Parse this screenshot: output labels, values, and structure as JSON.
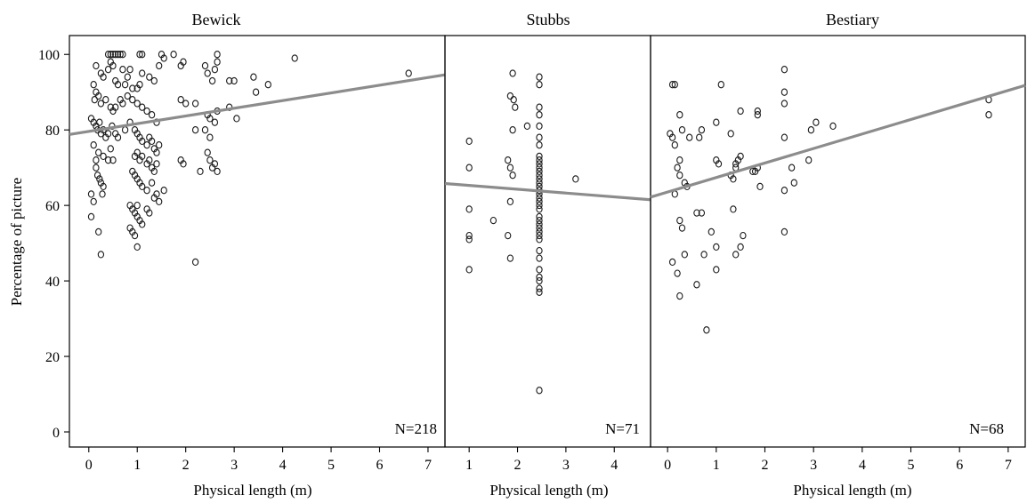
{
  "chart_data": [
    {
      "type": "scatter",
      "title": "Bewick",
      "xlabel": "Physical length (m)",
      "ylabel": "Percentage of picture",
      "xlim": [
        -0.4,
        7.35
      ],
      "ylim": [
        -4,
        105
      ],
      "xticks": [
        0,
        1,
        2,
        3,
        4,
        5,
        6,
        7
      ],
      "yticks": [
        0,
        20,
        40,
        60,
        80,
        100
      ],
      "annotation": "N=218",
      "fit": {
        "x": [
          -0.4,
          7.35
        ],
        "y": [
          78.8,
          94.6
        ]
      },
      "points": [
        [
          0.4,
          100
        ],
        [
          0.45,
          100
        ],
        [
          0.5,
          100
        ],
        [
          0.55,
          100
        ],
        [
          0.6,
          100
        ],
        [
          0.65,
          100
        ],
        [
          0.7,
          100
        ],
        [
          1.05,
          100
        ],
        [
          1.1,
          100
        ],
        [
          1.5,
          100
        ],
        [
          1.75,
          100
        ],
        [
          2.65,
          100
        ],
        [
          0.45,
          98
        ],
        [
          0.5,
          97
        ],
        [
          0.4,
          96
        ],
        [
          0.7,
          96
        ],
        [
          0.15,
          97
        ],
        [
          0.25,
          95
        ],
        [
          0.3,
          94
        ],
        [
          0.55,
          93
        ],
        [
          0.6,
          92
        ],
        [
          0.85,
          96
        ],
        [
          0.8,
          94
        ],
        [
          0.75,
          92
        ],
        [
          0.9,
          91
        ],
        [
          1.0,
          91
        ],
        [
          1.05,
          92
        ],
        [
          1.1,
          95
        ],
        [
          1.25,
          94
        ],
        [
          1.35,
          93
        ],
        [
          1.45,
          97
        ],
        [
          1.55,
          99
        ],
        [
          1.9,
          97
        ],
        [
          1.95,
          98
        ],
        [
          2.2,
          87
        ],
        [
          2.4,
          97
        ],
        [
          2.45,
          95
        ],
        [
          2.55,
          93
        ],
        [
          2.65,
          98
        ],
        [
          2.6,
          96
        ],
        [
          2.9,
          93
        ],
        [
          3.0,
          93
        ],
        [
          3.4,
          94
        ],
        [
          3.45,
          90
        ],
        [
          3.7,
          92
        ],
        [
          4.25,
          99
        ],
        [
          6.6,
          95
        ],
        [
          0.1,
          92
        ],
        [
          0.15,
          90
        ],
        [
          0.12,
          88
        ],
        [
          0.2,
          89
        ],
        [
          0.25,
          87
        ],
        [
          0.35,
          88
        ],
        [
          0.45,
          86
        ],
        [
          0.5,
          85
        ],
        [
          0.55,
          86
        ],
        [
          0.65,
          88
        ],
        [
          0.7,
          87
        ],
        [
          0.8,
          89
        ],
        [
          0.9,
          88
        ],
        [
          1.0,
          87
        ],
        [
          1.1,
          86
        ],
        [
          1.2,
          85
        ],
        [
          1.3,
          84
        ],
        [
          1.4,
          82
        ],
        [
          1.9,
          88
        ],
        [
          2.0,
          87
        ],
        [
          2.45,
          84
        ],
        [
          2.5,
          83
        ],
        [
          2.6,
          82
        ],
        [
          2.65,
          85
        ],
        [
          2.9,
          86
        ],
        [
          3.05,
          83
        ],
        [
          0.05,
          83
        ],
        [
          0.1,
          82
        ],
        [
          0.15,
          81
        ],
        [
          0.18,
          80
        ],
        [
          0.22,
          82
        ],
        [
          0.25,
          79
        ],
        [
          0.3,
          80
        ],
        [
          0.35,
          78
        ],
        [
          0.4,
          79
        ],
        [
          0.48,
          81
        ],
        [
          0.55,
          79
        ],
        [
          0.6,
          78
        ],
        [
          0.75,
          80
        ],
        [
          0.85,
          82
        ],
        [
          0.95,
          80
        ],
        [
          1.0,
          79
        ],
        [
          1.05,
          78
        ],
        [
          1.1,
          77
        ],
        [
          1.2,
          76
        ],
        [
          1.25,
          78
        ],
        [
          1.3,
          77
        ],
        [
          1.35,
          75
        ],
        [
          1.4,
          74
        ],
        [
          1.45,
          76
        ],
        [
          2.4,
          80
        ],
        [
          2.5,
          78
        ],
        [
          2.2,
          80
        ],
        [
          0.1,
          76
        ],
        [
          0.2,
          74
        ],
        [
          0.3,
          73
        ],
        [
          0.4,
          72
        ],
        [
          0.45,
          75
        ],
        [
          0.5,
          72
        ],
        [
          0.15,
          72
        ],
        [
          0.95,
          73
        ],
        [
          1.0,
          74
        ],
        [
          1.05,
          72
        ],
        [
          1.1,
          73
        ],
        [
          1.2,
          71
        ],
        [
          1.25,
          72
        ],
        [
          1.3,
          70
        ],
        [
          1.35,
          69
        ],
        [
          1.4,
          71
        ],
        [
          1.9,
          72
        ],
        [
          1.95,
          71
        ],
        [
          2.45,
          74
        ],
        [
          2.5,
          72
        ],
        [
          2.55,
          70
        ],
        [
          2.6,
          71
        ],
        [
          2.65,
          69
        ],
        [
          2.3,
          69
        ],
        [
          0.15,
          70
        ],
        [
          0.18,
          68
        ],
        [
          0.22,
          67
        ],
        [
          0.25,
          66
        ],
        [
          0.3,
          65
        ],
        [
          0.28,
          63
        ],
        [
          0.9,
          69
        ],
        [
          0.95,
          68
        ],
        [
          1.0,
          67
        ],
        [
          1.05,
          66
        ],
        [
          1.1,
          65
        ],
        [
          1.2,
          64
        ],
        [
          1.3,
          66
        ],
        [
          1.35,
          62
        ],
        [
          1.4,
          63
        ],
        [
          1.45,
          61
        ],
        [
          1.55,
          64
        ],
        [
          1.0,
          60
        ],
        [
          0.05,
          57
        ],
        [
          0.2,
          53
        ],
        [
          0.25,
          47
        ],
        [
          0.85,
          60
        ],
        [
          0.9,
          59
        ],
        [
          0.95,
          58
        ],
        [
          1.0,
          57
        ],
        [
          1.05,
          56
        ],
        [
          1.1,
          55
        ],
        [
          1.2,
          59
        ],
        [
          1.25,
          58
        ],
        [
          0.85,
          54
        ],
        [
          0.9,
          53
        ],
        [
          0.95,
          52
        ],
        [
          1.0,
          49
        ],
        [
          2.2,
          45
        ],
        [
          0.05,
          63
        ],
        [
          0.1,
          61
        ]
      ]
    },
    {
      "type": "scatter",
      "title": "Stubbs",
      "xlabel": "Physical length (m)",
      "xlim": [
        0.5,
        4.75
      ],
      "ylim": [
        -4,
        105
      ],
      "xticks": [
        1,
        2,
        3,
        4
      ],
      "annotation": "N=71",
      "fit": {
        "x": [
          0.5,
          4.75
        ],
        "y": [
          65.8,
          61.5
        ]
      },
      "points": [
        [
          1,
          77
        ],
        [
          1,
          70
        ],
        [
          1,
          59
        ],
        [
          1,
          52
        ],
        [
          1,
          51
        ],
        [
          1,
          43
        ],
        [
          1.5,
          56
        ],
        [
          1.85,
          89
        ],
        [
          1.9,
          95
        ],
        [
          1.92,
          88
        ],
        [
          1.95,
          86
        ],
        [
          1.9,
          80
        ],
        [
          1.8,
          72
        ],
        [
          1.85,
          70
        ],
        [
          1.9,
          68
        ],
        [
          1.85,
          61
        ],
        [
          1.8,
          52
        ],
        [
          1.85,
          46
        ],
        [
          2.2,
          81
        ],
        [
          2.45,
          94
        ],
        [
          2.45,
          92
        ],
        [
          2.45,
          86
        ],
        [
          2.45,
          84
        ],
        [
          2.45,
          81
        ],
        [
          2.45,
          78
        ],
        [
          2.45,
          76
        ],
        [
          2.45,
          73
        ],
        [
          2.45,
          72
        ],
        [
          2.45,
          71
        ],
        [
          2.45,
          70
        ],
        [
          2.45,
          69
        ],
        [
          2.45,
          68
        ],
        [
          2.45,
          67
        ],
        [
          2.45,
          66
        ],
        [
          2.45,
          65
        ],
        [
          2.45,
          64
        ],
        [
          2.45,
          63
        ],
        [
          2.45,
          62
        ],
        [
          2.45,
          61
        ],
        [
          2.45,
          60
        ],
        [
          2.45,
          59
        ],
        [
          2.45,
          57
        ],
        [
          2.45,
          56
        ],
        [
          2.45,
          55
        ],
        [
          2.45,
          54
        ],
        [
          2.45,
          53
        ],
        [
          2.45,
          52
        ],
        [
          2.45,
          51
        ],
        [
          2.45,
          48
        ],
        [
          2.45,
          46
        ],
        [
          2.45,
          43
        ],
        [
          2.45,
          41
        ],
        [
          2.45,
          40
        ],
        [
          2.45,
          38
        ],
        [
          2.45,
          37
        ],
        [
          2.45,
          11
        ],
        [
          3.2,
          67
        ]
      ]
    },
    {
      "type": "scatter",
      "title": "Bestiary",
      "xlabel": "Physical length (m)",
      "xlim": [
        -0.35,
        7.35
      ],
      "ylim": [
        -4,
        105
      ],
      "xticks": [
        0,
        1,
        2,
        3,
        4,
        5,
        6,
        7
      ],
      "annotation": "N=68",
      "fit": {
        "x": [
          -0.35,
          7.35
        ],
        "y": [
          62.2,
          91.8
        ]
      },
      "points": [
        [
          0.1,
          92
        ],
        [
          0.15,
          92
        ],
        [
          1.1,
          92
        ],
        [
          2.4,
          96
        ],
        [
          2.4,
          90
        ],
        [
          2.4,
          87
        ],
        [
          0.25,
          84
        ],
        [
          1.0,
          82
        ],
        [
          1.5,
          85
        ],
        [
          1.85,
          85
        ],
        [
          1.85,
          84
        ],
        [
          0.05,
          79
        ],
        [
          0.1,
          78
        ],
        [
          0.3,
          80
        ],
        [
          0.45,
          78
        ],
        [
          0.7,
          80
        ],
        [
          0.65,
          78
        ],
        [
          1.3,
          79
        ],
        [
          2.4,
          78
        ],
        [
          2.95,
          80
        ],
        [
          3.05,
          82
        ],
        [
          3.4,
          81
        ],
        [
          6.6,
          88
        ],
        [
          6.6,
          84
        ],
        [
          0.15,
          76
        ],
        [
          0.25,
          72
        ],
        [
          1.0,
          72
        ],
        [
          1.05,
          71
        ],
        [
          1.4,
          71
        ],
        [
          1.45,
          72
        ],
        [
          1.5,
          73
        ],
        [
          1.85,
          70
        ],
        [
          1.8,
          69
        ],
        [
          1.75,
          69
        ],
        [
          1.4,
          70
        ],
        [
          0.2,
          70
        ],
        [
          0.25,
          68
        ],
        [
          0.35,
          66
        ],
        [
          0.4,
          65
        ],
        [
          1.3,
          68
        ],
        [
          1.35,
          67
        ],
        [
          1.9,
          65
        ],
        [
          2.4,
          64
        ],
        [
          2.55,
          70
        ],
        [
          2.6,
          66
        ],
        [
          2.9,
          72
        ],
        [
          0.15,
          63
        ],
        [
          0.25,
          56
        ],
        [
          0.3,
          54
        ],
        [
          0.6,
          58
        ],
        [
          0.7,
          58
        ],
        [
          0.9,
          53
        ],
        [
          1.0,
          49
        ],
        [
          1.35,
          59
        ],
        [
          1.4,
          47
        ],
        [
          1.5,
          49
        ],
        [
          1.55,
          52
        ],
        [
          2.4,
          53
        ],
        [
          0.35,
          47
        ],
        [
          0.1,
          45
        ],
        [
          0.2,
          42
        ],
        [
          0.6,
          39
        ],
        [
          0.25,
          36
        ],
        [
          1.0,
          43
        ],
        [
          0.8,
          27
        ],
        [
          0.75,
          47
        ]
      ]
    }
  ]
}
